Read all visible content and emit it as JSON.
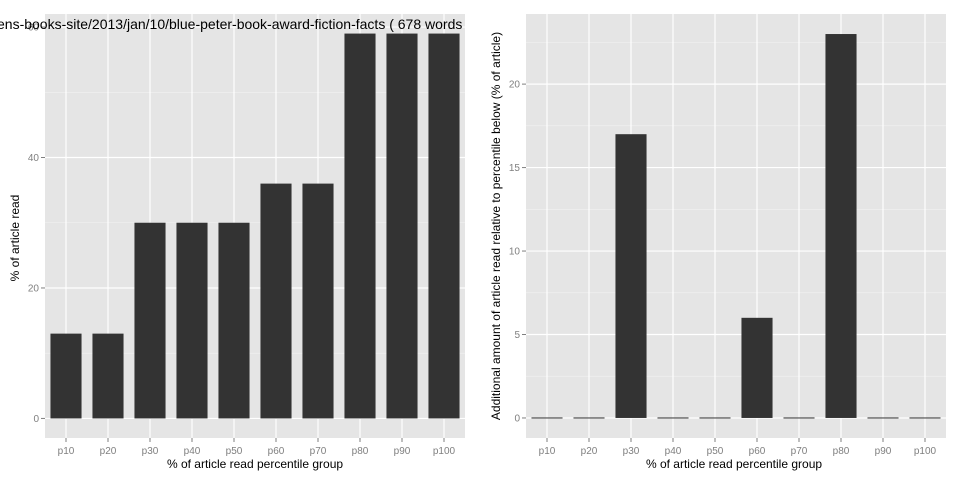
{
  "colors": {
    "panel_background": "#e5e5e5",
    "grid_major": "#ffffff",
    "grid_minor": "#f2f2f2",
    "bar_fill": "#333333",
    "tick_text": "#7f7f7f"
  },
  "chart_data": [
    {
      "type": "bar",
      "title": "ens-books-site/2013/jan/10/blue-peter-book-award-fiction-facts ( 678 words",
      "xlabel": "% of article read percentile group",
      "ylabel": "% of article read",
      "categories": [
        "p10",
        "p20",
        "p30",
        "p40",
        "p50",
        "p60",
        "p70",
        "p80",
        "p90",
        "p100"
      ],
      "values": [
        13,
        13,
        30,
        30,
        30,
        36,
        36,
        59,
        59,
        59
      ],
      "ylim": [
        -3,
        62
      ],
      "yticks": [
        0,
        20,
        40,
        60
      ],
      "ytick_labels": [
        "0",
        "20",
        "40",
        "60"
      ],
      "grid": true
    },
    {
      "type": "bar",
      "title": "",
      "xlabel": "% of article read percentile group",
      "ylabel": "Additional amount of article read relative to percentile below (% of article)",
      "categories": [
        "p10",
        "p20",
        "p30",
        "p40",
        "p50",
        "p60",
        "p70",
        "p80",
        "p90",
        "p100"
      ],
      "values": [
        0,
        0,
        17,
        0,
        0,
        6,
        0,
        23,
        0,
        0
      ],
      "ylim": [
        -1.2,
        24.2
      ],
      "yticks": [
        0,
        5,
        10,
        15,
        20
      ],
      "ytick_labels": [
        "0",
        "5",
        "10",
        "15",
        "20"
      ],
      "grid": true
    }
  ]
}
